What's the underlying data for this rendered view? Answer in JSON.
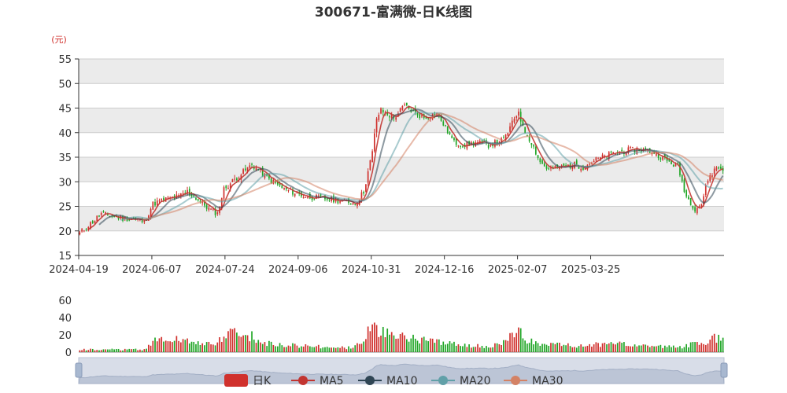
{
  "chart_data": {
    "type": "candlestick",
    "title": "300671-富满微-日K线图",
    "unit": "(元)",
    "price_axis": {
      "min": 15,
      "max": 55,
      "ticks": [
        15,
        20,
        25,
        30,
        35,
        40,
        45,
        50,
        55
      ]
    },
    "volume_axis": {
      "min": 0,
      "max": 60,
      "ticks": [
        0,
        20,
        40,
        60
      ]
    },
    "x_tick_labels": [
      "2024-04-19",
      "2024-06-07",
      "2024-07-24",
      "2024-09-06",
      "2024-10-31",
      "2024-12-16",
      "2025-02-07",
      "2025-03-25"
    ],
    "legend": [
      "日K",
      "MA5",
      "MA10",
      "MA20",
      "MA30"
    ],
    "close_path": [
      [
        0,
        19.5
      ],
      [
        5,
        21.5
      ],
      [
        10,
        23.5
      ],
      [
        15,
        23.0
      ],
      [
        20,
        22.5
      ],
      [
        25,
        22.5
      ],
      [
        30,
        21.8
      ],
      [
        34,
        25.5
      ],
      [
        40,
        26.5
      ],
      [
        46,
        27.0
      ],
      [
        50,
        28.0
      ],
      [
        56,
        26.0
      ],
      [
        60,
        24.5
      ],
      [
        64,
        23.5
      ],
      [
        67,
        28.5
      ],
      [
        72,
        30.5
      ],
      [
        76,
        32.0
      ],
      [
        80,
        33.5
      ],
      [
        84,
        32.0
      ],
      [
        88,
        30.5
      ],
      [
        95,
        28.5
      ],
      [
        105,
        27.0
      ],
      [
        115,
        26.5
      ],
      [
        124,
        26.0
      ],
      [
        128,
        25.5
      ],
      [
        132,
        28.0
      ],
      [
        136,
        36.0
      ],
      [
        138,
        43.0
      ],
      [
        140,
        44.5
      ],
      [
        146,
        43.0
      ],
      [
        151,
        45.5
      ],
      [
        156,
        44.0
      ],
      [
        160,
        43.0
      ],
      [
        166,
        44.0
      ],
      [
        170,
        41.0
      ],
      [
        174,
        38.0
      ],
      [
        178,
        37.5
      ],
      [
        185,
        38.0
      ],
      [
        190,
        37.5
      ],
      [
        197,
        38.5
      ],
      [
        200,
        41.0
      ],
      [
        204,
        44.5
      ],
      [
        206,
        41.0
      ],
      [
        210,
        38.0
      ],
      [
        214,
        34.0
      ],
      [
        218,
        32.5
      ],
      [
        224,
        33.0
      ],
      [
        230,
        33.5
      ],
      [
        234,
        33.0
      ],
      [
        240,
        34.5
      ],
      [
        246,
        35.5
      ],
      [
        250,
        36.0
      ],
      [
        256,
        36.5
      ],
      [
        262,
        36.5
      ],
      [
        267,
        36.0
      ],
      [
        272,
        34.5
      ],
      [
        278,
        33.0
      ],
      [
        282,
        27.0
      ],
      [
        286,
        24.5
      ],
      [
        289,
        25.5
      ],
      [
        292,
        30.5
      ],
      [
        296,
        33.0
      ],
      [
        299,
        32.5
      ]
    ],
    "volume_path": [
      [
        0,
        3
      ],
      [
        30,
        3
      ],
      [
        32,
        7
      ],
      [
        36,
        16
      ],
      [
        40,
        13
      ],
      [
        44,
        15
      ],
      [
        50,
        14
      ],
      [
        56,
        10
      ],
      [
        60,
        11
      ],
      [
        64,
        9
      ],
      [
        66,
        17
      ],
      [
        70,
        22
      ],
      [
        76,
        20
      ],
      [
        80,
        18
      ],
      [
        88,
        10
      ],
      [
        96,
        8
      ],
      [
        105,
        7
      ],
      [
        115,
        6
      ],
      [
        124,
        5
      ],
      [
        128,
        7
      ],
      [
        132,
        14
      ],
      [
        136,
        30
      ],
      [
        138,
        28
      ],
      [
        142,
        23
      ],
      [
        148,
        18
      ],
      [
        152,
        17
      ],
      [
        158,
        15
      ],
      [
        164,
        12
      ],
      [
        170,
        10
      ],
      [
        178,
        8
      ],
      [
        190,
        7
      ],
      [
        196,
        9
      ],
      [
        200,
        18
      ],
      [
        204,
        25
      ],
      [
        206,
        18
      ],
      [
        210,
        12
      ],
      [
        216,
        9
      ],
      [
        224,
        8
      ],
      [
        232,
        7
      ],
      [
        240,
        9
      ],
      [
        250,
        10
      ],
      [
        258,
        9
      ],
      [
        266,
        8
      ],
      [
        272,
        7
      ],
      [
        280,
        6
      ],
      [
        286,
        10
      ],
      [
        290,
        8
      ],
      [
        293,
        18
      ],
      [
        295,
        16
      ],
      [
        297,
        17
      ],
      [
        299,
        14
      ]
    ],
    "ma_periods": [
      5,
      10,
      20,
      30
    ],
    "colors": {
      "up": "#d0312d",
      "down": "#1fa525",
      "ma5": "#c23531",
      "ma10": "#2f4554",
      "ma20": "#61a0a8",
      "ma30": "#d48265",
      "band": "#ebebeb",
      "grid": "#cccccc",
      "slider_bg": "#d8dde8",
      "slider_handle": "#a8b8d0"
    }
  }
}
